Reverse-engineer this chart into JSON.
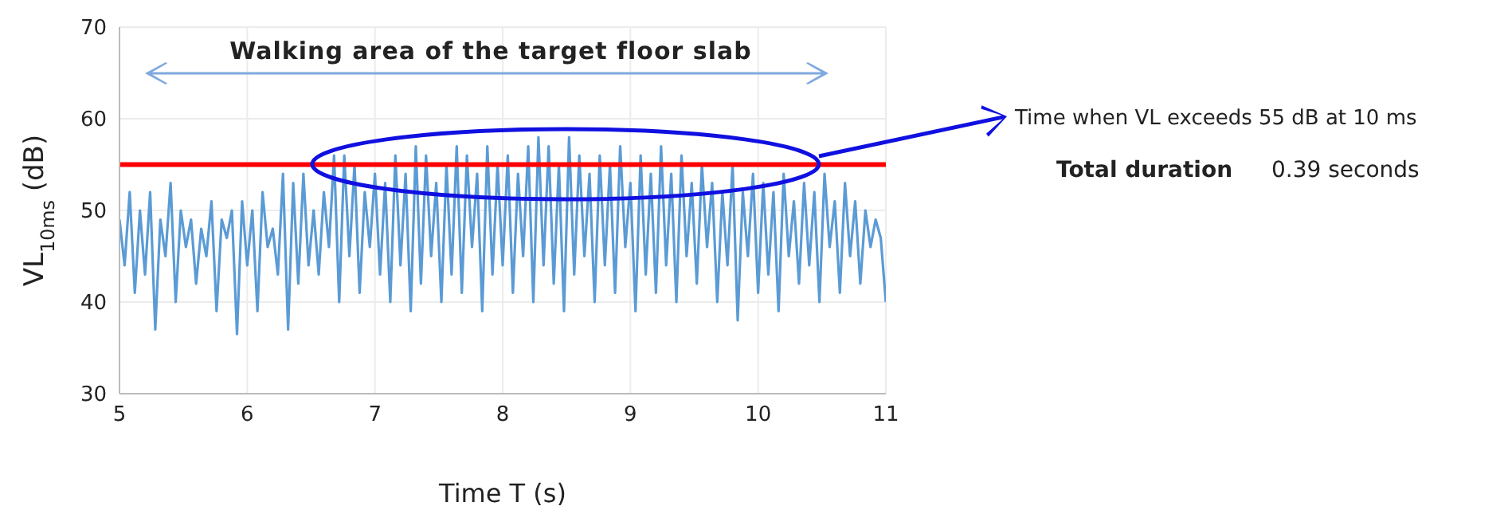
{
  "chart_data": {
    "type": "line",
    "xlabel": "Time T (s)",
    "ylabel": "VL$_{10ms}$ (dB)",
    "xlim": [
      5,
      11
    ],
    "xticks": [
      5,
      6,
      7,
      8,
      9,
      10,
      11
    ],
    "ylim": [
      30,
      70
    ],
    "yticks": [
      30,
      40,
      50,
      60,
      70
    ],
    "grid": true,
    "marker": "none",
    "line_style": "solid",
    "x": [
      5.0,
      5.04,
      5.08,
      5.12,
      5.16,
      5.2,
      5.24,
      5.28,
      5.32,
      5.36,
      5.4,
      5.44,
      5.48,
      5.52,
      5.56,
      5.6,
      5.64,
      5.68,
      5.72,
      5.76,
      5.8,
      5.84,
      5.88,
      5.92,
      5.96,
      6.0,
      6.04,
      6.08,
      6.12,
      6.16,
      6.2,
      6.24,
      6.28,
      6.32,
      6.36,
      6.4,
      6.44,
      6.48,
      6.52,
      6.56,
      6.6,
      6.64,
      6.68,
      6.72,
      6.76,
      6.8,
      6.84,
      6.88,
      6.92,
      6.96,
      7.0,
      7.04,
      7.08,
      7.12,
      7.16,
      7.2,
      7.24,
      7.28,
      7.32,
      7.36,
      7.4,
      7.44,
      7.48,
      7.52,
      7.56,
      7.6,
      7.64,
      7.68,
      7.72,
      7.76,
      7.8,
      7.84,
      7.88,
      7.92,
      7.96,
      8.0,
      8.04,
      8.08,
      8.12,
      8.16,
      8.2,
      8.24,
      8.28,
      8.32,
      8.36,
      8.4,
      8.44,
      8.48,
      8.52,
      8.56,
      8.6,
      8.64,
      8.68,
      8.72,
      8.76,
      8.8,
      8.84,
      8.88,
      8.92,
      8.96,
      9.0,
      9.04,
      9.08,
      9.12,
      9.16,
      9.2,
      9.24,
      9.28,
      9.32,
      9.36,
      9.4,
      9.44,
      9.48,
      9.52,
      9.56,
      9.6,
      9.64,
      9.68,
      9.72,
      9.76,
      9.8,
      9.84,
      9.88,
      9.92,
      9.96,
      10.0,
      10.04,
      10.08,
      10.12,
      10.16,
      10.2,
      10.24,
      10.28,
      10.32,
      10.36,
      10.4,
      10.44,
      10.48,
      10.52,
      10.56,
      10.6,
      10.64,
      10.68,
      10.72,
      10.76,
      10.8,
      10.84,
      10.88,
      10.92,
      10.96,
      11.0
    ],
    "series": [
      {
        "color": "#5b9bd5",
        "values": [
          49,
          44,
          52,
          41,
          50,
          43,
          52,
          37,
          49,
          45,
          53,
          40,
          50,
          46,
          49,
          42,
          48,
          45,
          51,
          39,
          49,
          47,
          50,
          36.5,
          51,
          44,
          50,
          39,
          52,
          46,
          48,
          43,
          54,
          37,
          53,
          42,
          54,
          44,
          50,
          43,
          52,
          46,
          56,
          40,
          56,
          45,
          55,
          41,
          52,
          46,
          54,
          43,
          53,
          40,
          56,
          44,
          54,
          39,
          57,
          42,
          56,
          45,
          53,
          40,
          55,
          43,
          57,
          41,
          56,
          46,
          54,
          39,
          57,
          43,
          55,
          44,
          56,
          41,
          54,
          45,
          57,
          40,
          58,
          44,
          57,
          42,
          55,
          39,
          58,
          43,
          56,
          45,
          54,
          40,
          56,
          44,
          55,
          41,
          57,
          46,
          53,
          39,
          56,
          43,
          54,
          41,
          57,
          44,
          54,
          40,
          56,
          45,
          53,
          42,
          55,
          46,
          53,
          40,
          52,
          44,
          55,
          38,
          52,
          45,
          54,
          41,
          53,
          43,
          52,
          39,
          54,
          45,
          51,
          42,
          53,
          44,
          52,
          40,
          54,
          46,
          51,
          41,
          53,
          45,
          51,
          42,
          50,
          46,
          49,
          47,
          40
        ]
      }
    ],
    "ref_lines": [
      {
        "axis": "y",
        "value": 55,
        "color": "#ff0000"
      }
    ],
    "annotations": [
      "Walking area of the target floor slab",
      "Time when VL exceeds 55 dB at 10 ms",
      "Total duration",
      "0.39 seconds"
    ]
  }
}
